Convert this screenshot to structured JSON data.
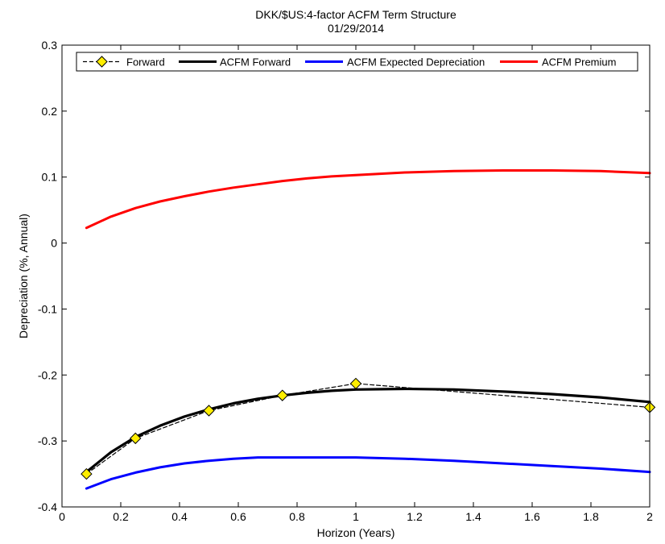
{
  "chart_data": {
    "type": "line",
    "title": "DKK/$US:4-factor ACFM Term Structure",
    "subtitle": "01/29/2014",
    "xlabel": "Horizon (Years)",
    "ylabel": "Depreciation (%, Annual)",
    "xlim": [
      0,
      2
    ],
    "ylim": [
      -0.4,
      0.3
    ],
    "xticks": [
      0,
      0.2,
      0.4,
      0.6,
      0.8,
      1,
      1.2,
      1.4,
      1.6,
      1.8,
      2
    ],
    "xtick_labels": [
      "0",
      "0.2",
      "0.4",
      "0.6",
      "0.8",
      "1",
      "1.2",
      "1.4",
      "1.6",
      "1.8",
      "2"
    ],
    "yticks": [
      -0.4,
      -0.3,
      -0.2,
      -0.1,
      0,
      0.1,
      0.2,
      0.3
    ],
    "ytick_labels": [
      "-0.4",
      "-0.3",
      "-0.2",
      "-0.1",
      "0",
      "0.1",
      "0.2",
      "0.3"
    ],
    "grid": false,
    "legend_position": "top",
    "series": [
      {
        "name": "Forward",
        "color": "#000000",
        "marker_color": "#ffee00",
        "style": "dashed-diamond",
        "x": [
          0.0833,
          0.25,
          0.5,
          0.75,
          1.0,
          2.0
        ],
        "y": [
          -0.35,
          -0.296,
          -0.254,
          -0.231,
          -0.213,
          -0.249
        ]
      },
      {
        "name": "ACFM Forward",
        "color": "#000000",
        "style": "solid-thick",
        "x": [
          0.0833,
          0.1667,
          0.25,
          0.3333,
          0.4167,
          0.5,
          0.5833,
          0.6667,
          0.75,
          0.8333,
          0.9167,
          1.0,
          1.1667,
          1.3333,
          1.5,
          1.6667,
          1.8333,
          2.0
        ],
        "y": [
          -0.347,
          -0.317,
          -0.294,
          -0.277,
          -0.263,
          -0.252,
          -0.243,
          -0.236,
          -0.231,
          -0.227,
          -0.224,
          -0.222,
          -0.221,
          -0.222,
          -0.225,
          -0.229,
          -0.234,
          -0.241
        ]
      },
      {
        "name": "ACFM Expected Depreciation",
        "color": "#0000ff",
        "style": "solid",
        "x": [
          0.0833,
          0.1667,
          0.25,
          0.3333,
          0.4167,
          0.5,
          0.5833,
          0.6667,
          0.75,
          0.8333,
          0.9167,
          1.0,
          1.1667,
          1.3333,
          1.5,
          1.6667,
          1.8333,
          2.0
        ],
        "y": [
          -0.372,
          -0.358,
          -0.348,
          -0.34,
          -0.334,
          -0.33,
          -0.327,
          -0.325,
          -0.325,
          -0.325,
          -0.325,
          -0.325,
          -0.327,
          -0.33,
          -0.334,
          -0.338,
          -0.342,
          -0.347
        ]
      },
      {
        "name": "ACFM Premium",
        "color": "#ff0000",
        "style": "solid",
        "x": [
          0.0833,
          0.1667,
          0.25,
          0.3333,
          0.4167,
          0.5,
          0.5833,
          0.6667,
          0.75,
          0.8333,
          0.9167,
          1.0,
          1.1667,
          1.3333,
          1.5,
          1.6667,
          1.8333,
          2.0
        ],
        "y": [
          0.023,
          0.04,
          0.053,
          0.063,
          0.071,
          0.078,
          0.084,
          0.089,
          0.094,
          0.098,
          0.101,
          0.103,
          0.107,
          0.109,
          0.11,
          0.11,
          0.109,
          0.106
        ]
      }
    ]
  }
}
